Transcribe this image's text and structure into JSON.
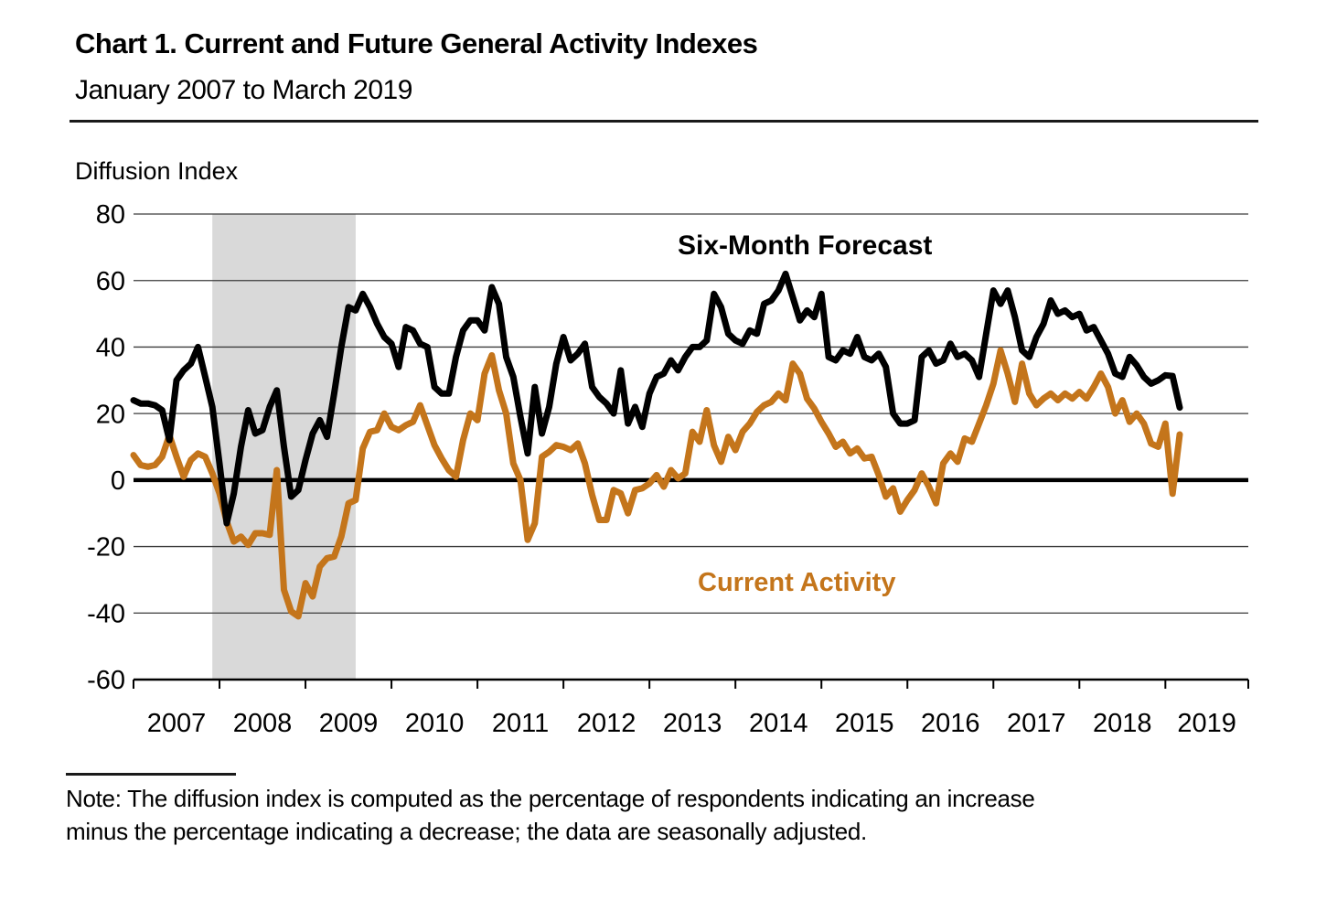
{
  "header": {
    "title": "Chart 1. Current and Future General Activity Indexes",
    "subtitle": "January 2007 to March 2019"
  },
  "chart": {
    "y_axis_title": "Diffusion Index",
    "forecast_label": "Six-Month Forecast",
    "current_label": "Current Activity"
  },
  "note": {
    "line1": "Note: The diffusion index is computed as the percentage of respondents indicating an increase",
    "line2": "minus the percentage indicating a decrease; the data are seasonally adjusted."
  },
  "colors": {
    "forecast_line": "#000000",
    "current_line": "#C4751B",
    "current_label_text": "#C4751B",
    "recession_band": "#D9D9D9",
    "zero_line": "#000000",
    "gridline": "#3c3c3c",
    "axis": "#000000"
  },
  "chart_data": {
    "type": "line",
    "title": "Chart 1. Current and Future General Activity Indexes",
    "subtitle": "January 2007 to March 2019",
    "ylabel": "Diffusion Index",
    "x_start": "2007-01",
    "x_end": "2019-03",
    "frequency": "monthly",
    "n_points": 147,
    "ylim": [
      -60,
      80
    ],
    "yticks": [
      80,
      60,
      40,
      20,
      0,
      -20,
      -40,
      -60
    ],
    "xticks": [
      "2007",
      "2008",
      "2009",
      "2010",
      "2011",
      "2012",
      "2013",
      "2014",
      "2015",
      "2016",
      "2017",
      "2018",
      "2019"
    ],
    "grid": "horizontal",
    "legend_position": "inline-annotations",
    "recession_band": {
      "start": "2007-12",
      "end": "2009-07",
      "start_index": 11,
      "end_index": 31
    },
    "series": [
      {
        "name": "Six-Month Forecast",
        "color": "#000000",
        "values": [
          24,
          23,
          23,
          22.5,
          21,
          12,
          30,
          33,
          35,
          40,
          31,
          22,
          5,
          -13,
          -4,
          10,
          21,
          14,
          15,
          22,
          27,
          10,
          -5,
          -3,
          6,
          14,
          18,
          13,
          26,
          40,
          52,
          51,
          56,
          52,
          47,
          43,
          41,
          34,
          46,
          45,
          41,
          40,
          28,
          26,
          26,
          37,
          45,
          48,
          48,
          45,
          58,
          53,
          37,
          31,
          19,
          8,
          28,
          14,
          22,
          35,
          43,
          36,
          38,
          41,
          28,
          25,
          23,
          20,
          33,
          17,
          22,
          16,
          26,
          31,
          32,
          36,
          33,
          37,
          40,
          40,
          42,
          56,
          52,
          44,
          42,
          41,
          45,
          44,
          53,
          54,
          57,
          62,
          55,
          48,
          51,
          49,
          56,
          37,
          36,
          39,
          38,
          43,
          37,
          36,
          38,
          34,
          20,
          17,
          17,
          18,
          37,
          39,
          35,
          36,
          41,
          37,
          38,
          36,
          31,
          44,
          57,
          53,
          57,
          49,
          39,
          37,
          43,
          47,
          54,
          50,
          51,
          49,
          50,
          45,
          46,
          42,
          38,
          32,
          31,
          37,
          34.5,
          31,
          29,
          30,
          31.5,
          31.3,
          21.8
        ]
      },
      {
        "name": "Current Activity",
        "color": "#C4751B",
        "values": [
          7.5,
          4.5,
          4,
          4.5,
          7,
          13.5,
          7,
          1,
          6,
          8,
          7,
          2,
          -4,
          -12.5,
          -18.5,
          -17,
          -19.5,
          -16,
          -16,
          -16.5,
          3,
          -33,
          -39.5,
          -41,
          -31,
          -35,
          -26,
          -23.5,
          -23,
          -17,
          -7,
          -6,
          9.5,
          14.5,
          15,
          20,
          16,
          15,
          16.5,
          17.5,
          22.5,
          16.5,
          10.5,
          6.5,
          3,
          1,
          12,
          20,
          18,
          32,
          37.5,
          27,
          20,
          5,
          0,
          -18,
          -13,
          7,
          8.5,
          10.5,
          10,
          9,
          11,
          5,
          -4.5,
          -12,
          -12,
          -3,
          -4,
          -10,
          -3,
          -2.5,
          -1,
          1.5,
          -2,
          3,
          0.5,
          2,
          14.5,
          11.5,
          21,
          10.5,
          5.5,
          13,
          9,
          14.5,
          17,
          20.5,
          22.5,
          23.5,
          26,
          24,
          35,
          32,
          24.5,
          21.5,
          17.5,
          14,
          10,
          11.5,
          8,
          9.5,
          6.5,
          7,
          1.5,
          -5,
          -2.5,
          -9.5,
          -6,
          -3,
          2,
          -2,
          -7,
          5,
          8,
          5.5,
          12.5,
          11.5,
          17,
          22.5,
          29,
          39,
          32,
          23.5,
          35,
          26,
          22.5,
          24.5,
          26,
          24,
          26,
          24.5,
          26.5,
          24.5,
          28,
          32,
          28,
          20,
          24,
          17.5,
          20,
          17,
          11,
          10,
          17,
          -4.1,
          13.7
        ]
      }
    ]
  }
}
